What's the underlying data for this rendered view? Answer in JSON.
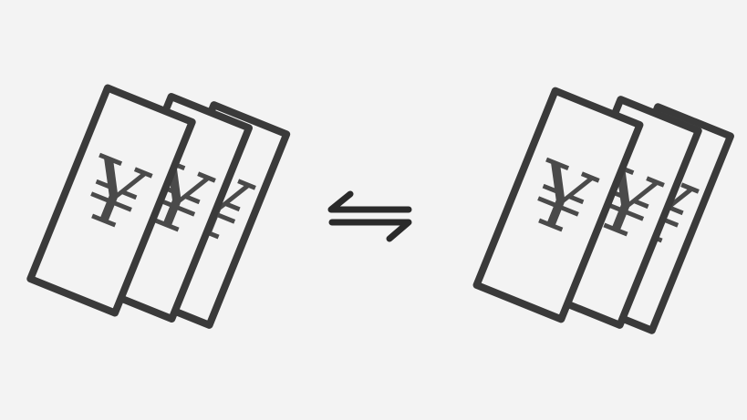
{
  "scene": {
    "left_stack": {
      "symbol": "¥",
      "count": 3
    },
    "right_stack": {
      "symbol": "¥",
      "count": 3
    },
    "exchange_icon": "exchange-arrows-icon"
  },
  "colors": {
    "background": "#f3f3f3",
    "stroke": "#3a3a3a",
    "arrow": "#2a2a2a"
  }
}
